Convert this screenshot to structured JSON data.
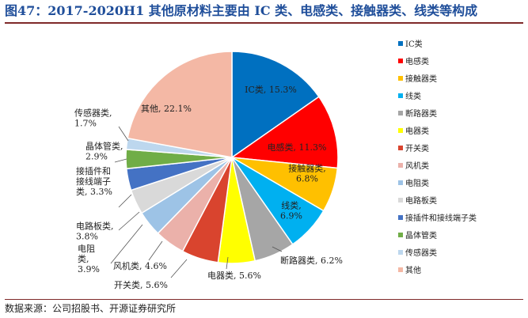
{
  "title": "图47：2017-2020H1 其他原材料主要由 IC 类、电感类、接触器类、线类等构成",
  "source": "数据来源：公司招股书、开源证券研究所",
  "chart_data": {
    "type": "pie",
    "title": "",
    "legend_position": "right",
    "slices": [
      {
        "name": "IC类",
        "value": 15.3,
        "label": [
          "IC类, 15.3%"
        ],
        "color": "#0070C0"
      },
      {
        "name": "电感类",
        "value": 11.3,
        "label": [
          "电感类, 11.3%"
        ],
        "color": "#FF0000"
      },
      {
        "name": "接触器类",
        "value": 6.8,
        "label": [
          "接触器类,",
          "6.8%"
        ],
        "color": "#FFC000"
      },
      {
        "name": "线类",
        "value": 6.9,
        "label": [
          "线类,",
          "6.9%"
        ],
        "color": "#00B0F0"
      },
      {
        "name": "断路器类",
        "value": 6.2,
        "label": [
          "断路器类, 6.2%"
        ],
        "color": "#A6A6A6"
      },
      {
        "name": "电器类",
        "value": 5.6,
        "label": [
          "电器类, 5.6%"
        ],
        "color": "#FFFF00"
      },
      {
        "name": "开关类",
        "value": 5.6,
        "label": [
          "开关类, 5.6%"
        ],
        "color": "#D9442E"
      },
      {
        "name": "风机类",
        "value": 4.6,
        "label": [
          "风机类, 4.6%"
        ],
        "color": "#EBB1AA"
      },
      {
        "name": "电阻类",
        "value": 3.9,
        "label": [
          "电阻",
          "类,",
          "3.9%"
        ],
        "color": "#9DC3E6"
      },
      {
        "name": "电路板类",
        "value": 3.8,
        "label": [
          "电路板类,",
          "3.8%"
        ],
        "color": "#D9D9D9"
      },
      {
        "name": "接插件和接线端子类",
        "value": 3.3,
        "label": [
          "接插件和",
          "接线端子",
          "类, 3.3%"
        ],
        "color": "#4472C4"
      },
      {
        "name": "晶体管类",
        "value": 2.9,
        "label": [
          "晶体管类,",
          "2.9%"
        ],
        "color": "#70AD47"
      },
      {
        "name": "传感器类",
        "value": 1.7,
        "label": [
          "传感器类,",
          "1.7%"
        ],
        "color": "#BDD7EE"
      },
      {
        "name": "其他",
        "value": 22.1,
        "label": [
          "其他, 22.1%"
        ],
        "color": "#F4B8A5"
      }
    ]
  }
}
